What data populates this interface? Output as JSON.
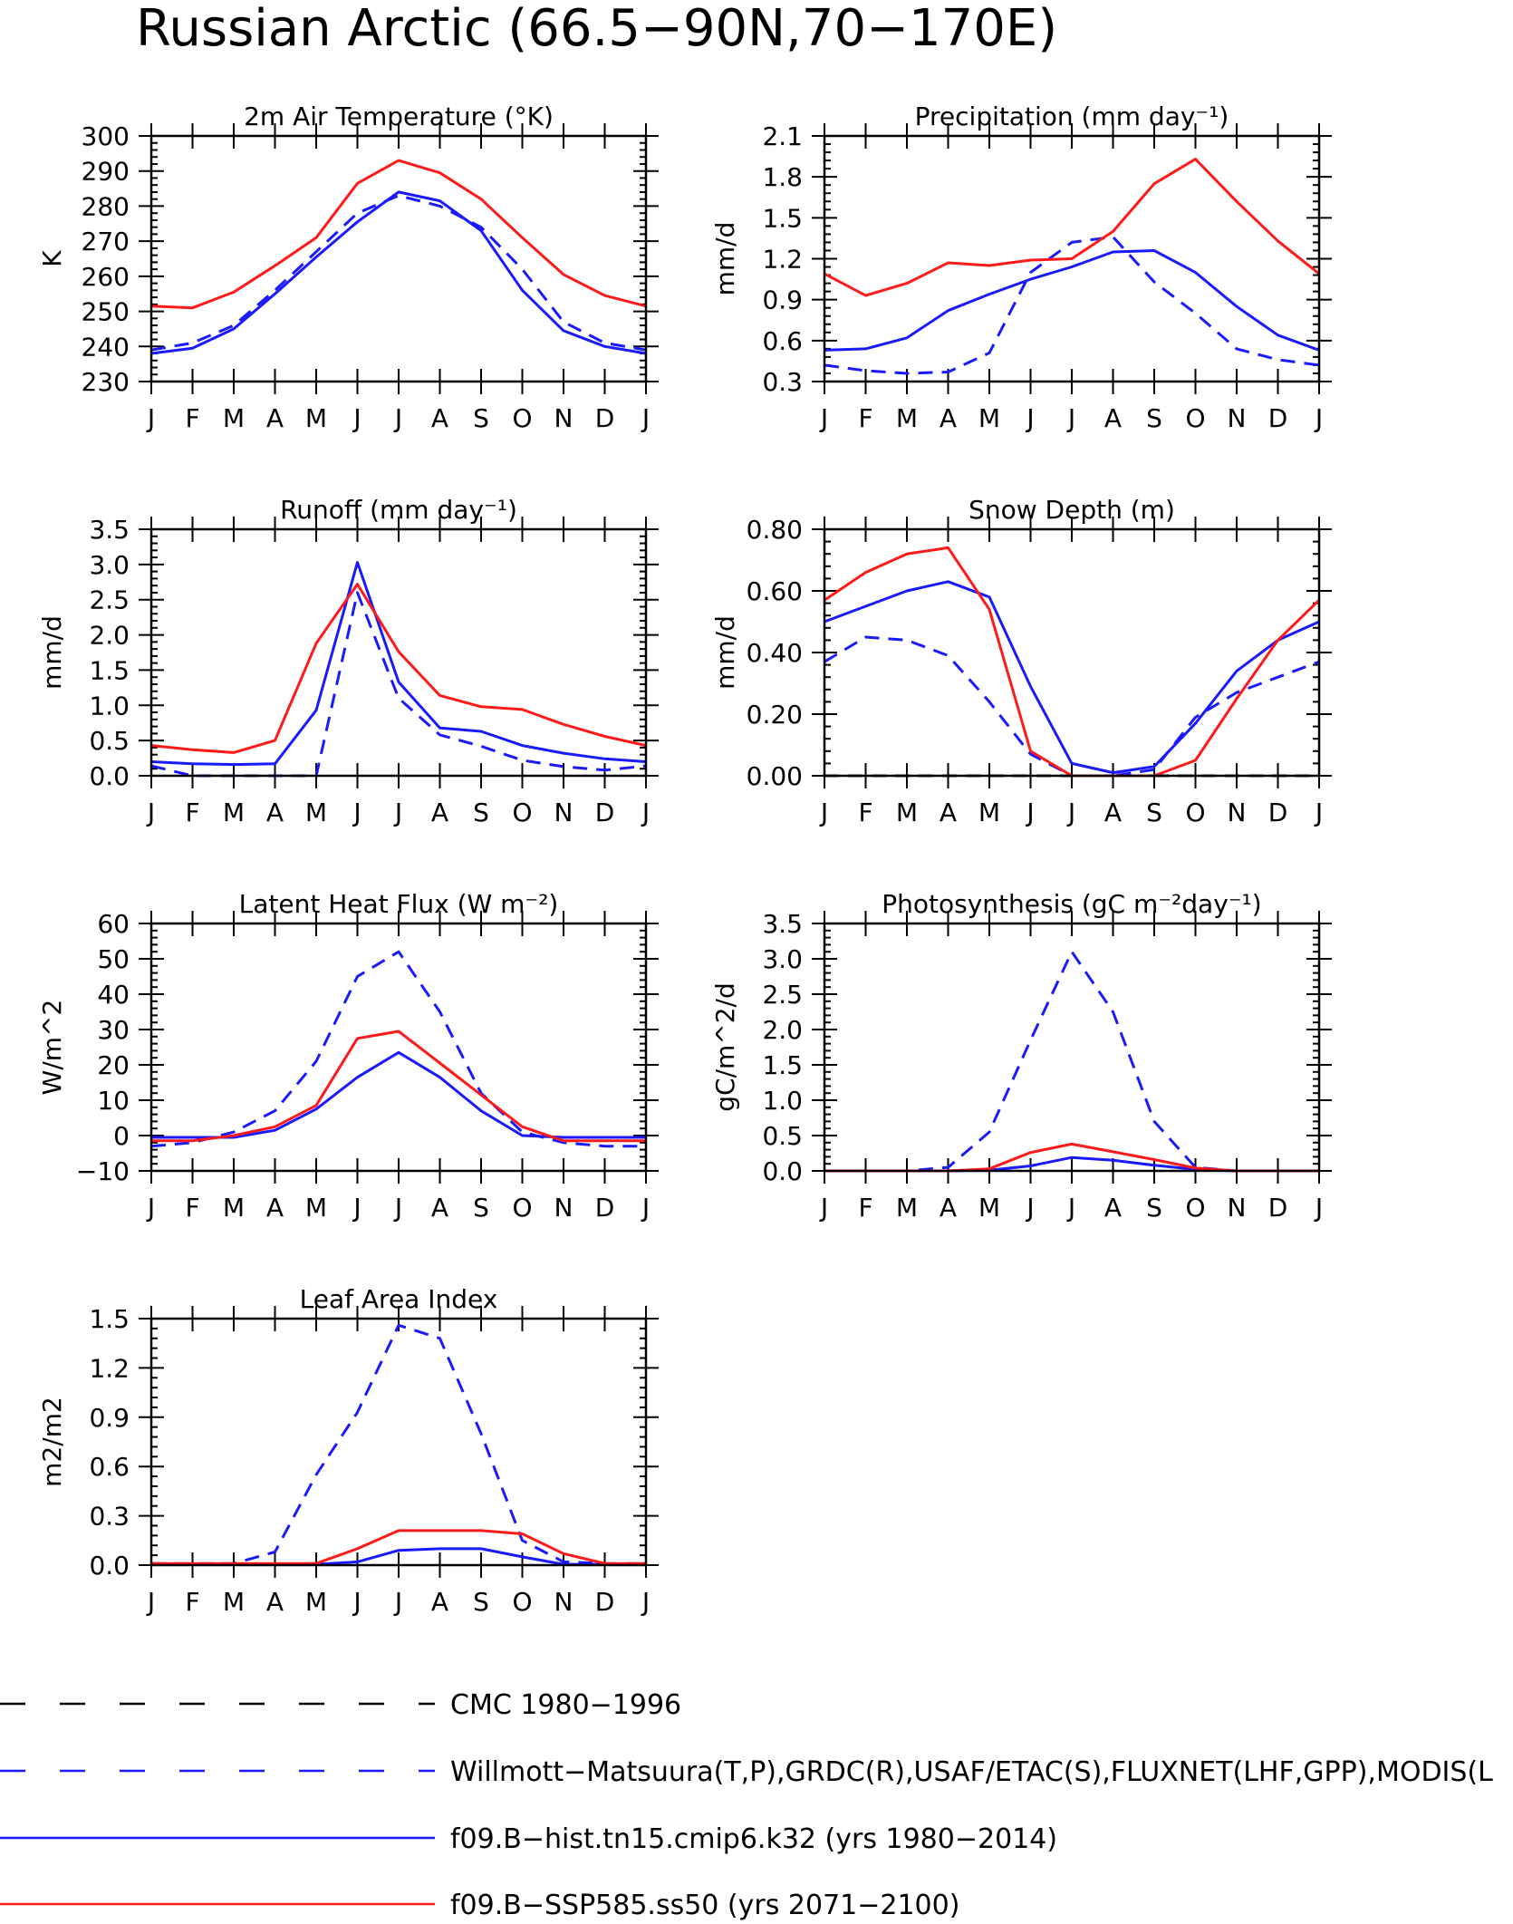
{
  "figure": {
    "title": "Russian Arctic (66.5−90N,70−170E)"
  },
  "style": {
    "obs_color": "#1a1aff",
    "model_color": "#1a1aff",
    "future_color": "#ff1a1a",
    "cmc_color": "#000000"
  },
  "months": [
    "J",
    "F",
    "M",
    "A",
    "M",
    "J",
    "J",
    "A",
    "S",
    "O",
    "N",
    "D",
    "J"
  ],
  "legend": [
    {
      "label": "CMC 1980−1996",
      "color": "#000000",
      "dash": true
    },
    {
      "label": "Willmott−Matsuura(T,P),GRDC(R),USAF/ETAC(S),FLUXNET(LHF,GPP),MODIS(L",
      "color": "#1a1aff",
      "dash": true
    },
    {
      "label": "f09.B−hist.tn15.cmip6.k32 (yrs 1980−2014)",
      "color": "#1a1aff",
      "dash": false
    },
    {
      "label": "f09.B−SSP585.ss50 (yrs 2071−2100)",
      "color": "#ff1a1a",
      "dash": false
    }
  ],
  "chart_data": [
    {
      "type": "line",
      "title": "2m Air Temperature (°K)",
      "ylabel": "K",
      "ylim": [
        230,
        300
      ],
      "yticks": [
        "230",
        "240",
        "250",
        "260",
        "270",
        "280",
        "290",
        "300"
      ],
      "series": [
        {
          "name": "Willmott−Matsuura(T,P),GRDC(R),USAF/ETAC(S),FLUXNET(LHF,GPP),MODIS(L",
          "dash": true,
          "color": "#1a1aff",
          "values": [
            239,
            241,
            246,
            256,
            267,
            278,
            283,
            280,
            274,
            262,
            247,
            241,
            239
          ]
        },
        {
          "name": "f09.B−hist.tn15.cmip6.k32 (yrs 1980−2014)",
          "dash": false,
          "color": "#1a1aff",
          "values": [
            238,
            239.5,
            245,
            255,
            265.5,
            275.5,
            284,
            281.5,
            273,
            256,
            244.5,
            240,
            238
          ]
        },
        {
          "name": "f09.B−SSP585.ss50 (yrs 2071−2100)",
          "dash": false,
          "color": "#ff1a1a",
          "values": [
            251.5,
            251,
            255.5,
            263,
            271,
            286.5,
            293,
            289.5,
            282,
            271,
            260.5,
            254.5,
            251.5
          ]
        }
      ]
    },
    {
      "type": "line",
      "title": "Precipitation (mm day⁻¹)",
      "ylabel": "mm/d",
      "ylim": [
        0.3,
        2.1
      ],
      "yticks": [
        "0.3",
        "0.6",
        "0.9",
        "1.2",
        "1.5",
        "1.8",
        "2.1"
      ],
      "series": [
        {
          "name": "Willmott−Matsuura(T,P),GRDC(R),USAF/ETAC(S),FLUXNET(LHF,GPP),MODIS(L",
          "dash": true,
          "color": "#1a1aff",
          "values": [
            0.42,
            0.38,
            0.36,
            0.37,
            0.51,
            1.1,
            1.32,
            1.36,
            1.03,
            0.8,
            0.54,
            0.46,
            0.42
          ]
        },
        {
          "name": "f09.B−hist.tn15.cmip6.k32 (yrs 1980−2014)",
          "dash": false,
          "color": "#1a1aff",
          "values": [
            0.53,
            0.54,
            0.62,
            0.82,
            0.94,
            1.05,
            1.14,
            1.25,
            1.26,
            1.1,
            0.85,
            0.64,
            0.53
          ]
        },
        {
          "name": "f09.B−SSP585.ss50 (yrs 2071−2100)",
          "dash": false,
          "color": "#ff1a1a",
          "values": [
            1.09,
            0.93,
            1.02,
            1.17,
            1.15,
            1.19,
            1.2,
            1.4,
            1.75,
            1.93,
            1.62,
            1.33,
            1.09
          ]
        }
      ]
    },
    {
      "type": "line",
      "title": "Runoff (mm day⁻¹)",
      "ylabel": "mm/d",
      "ylim": [
        0.0,
        3.5
      ],
      "yticks": [
        "0.0",
        "0.5",
        "1.0",
        "1.5",
        "2.0",
        "2.5",
        "3.0",
        "3.5"
      ],
      "series": [
        {
          "name": "Willmott−Matsuura(T,P),GRDC(R),USAF/ETAC(S),FLUXNET(LHF,GPP),MODIS(L",
          "dash": true,
          "color": "#1a1aff",
          "values": [
            0.14,
            0.0,
            0.0,
            0.0,
            0.0,
            2.6,
            1.1,
            0.58,
            0.42,
            0.22,
            0.13,
            0.08,
            0.14
          ]
        },
        {
          "name": "f09.B−hist.tn15.cmip6.k32 (yrs 1980−2014)",
          "dash": false,
          "color": "#1a1aff",
          "values": [
            0.2,
            0.17,
            0.16,
            0.17,
            0.93,
            3.03,
            1.33,
            0.68,
            0.63,
            0.43,
            0.32,
            0.24,
            0.2
          ]
        },
        {
          "name": "f09.B−SSP585.ss50 (yrs 2071−2100)",
          "dash": false,
          "color": "#ff1a1a",
          "values": [
            0.43,
            0.37,
            0.33,
            0.5,
            1.88,
            2.72,
            1.76,
            1.14,
            0.98,
            0.94,
            0.73,
            0.56,
            0.43
          ]
        }
      ]
    },
    {
      "type": "line",
      "title": "Snow Depth (m)",
      "ylabel": "mm/d",
      "ylim": [
        0.0,
        0.8
      ],
      "yticks": [
        "0.00",
        "0.20",
        "0.40",
        "0.60",
        "0.80"
      ],
      "series": [
        {
          "name": "CMC 1980−1996",
          "dash": true,
          "color": "#000000",
          "values": [
            0,
            0,
            0,
            0,
            0,
            0,
            0,
            0,
            0,
            0,
            0,
            0,
            0
          ]
        },
        {
          "name": "Willmott−Matsuura(T,P),GRDC(R),USAF/ETAC(S),FLUXNET(LHF,GPP),MODIS(L",
          "dash": true,
          "color": "#1a1aff",
          "values": [
            0.37,
            0.45,
            0.44,
            0.39,
            0.24,
            0.07,
            0.0,
            0.0,
            0.02,
            0.19,
            0.27,
            0.32,
            0.37
          ]
        },
        {
          "name": "f09.B−hist.tn15.cmip6.k32 (yrs 1980−2014)",
          "dash": false,
          "color": "#1a1aff",
          "values": [
            0.5,
            0.55,
            0.6,
            0.63,
            0.58,
            0.29,
            0.04,
            0.01,
            0.03,
            0.17,
            0.34,
            0.44,
            0.5
          ]
        },
        {
          "name": "f09.B−SSP585.ss50 (yrs 2071−2100)",
          "dash": false,
          "color": "#ff1a1a",
          "values": [
            0.57,
            0.66,
            0.72,
            0.74,
            0.54,
            0.08,
            0.0,
            0.0,
            0.0,
            0.05,
            0.25,
            0.44,
            0.57
          ]
        }
      ]
    },
    {
      "type": "line",
      "title": "Latent Heat Flux (W m⁻²)",
      "ylabel": "W/m^2",
      "ylim": [
        -10,
        60
      ],
      "yticks": [
        "−10",
        "0",
        "10",
        "20",
        "30",
        "40",
        "50",
        "60"
      ],
      "series": [
        {
          "name": "Willmott−Matsuura(T,P),GRDC(R),USAF/ETAC(S),FLUXNET(LHF,GPP),MODIS(L",
          "dash": true,
          "color": "#1a1aff",
          "values": [
            -3,
            -2,
            1,
            7,
            21,
            45,
            52,
            35,
            12,
            1,
            -2,
            -3,
            -3
          ]
        },
        {
          "name": "f09.B−hist.tn15.cmip6.k32 (yrs 1980−2014)",
          "dash": false,
          "color": "#1a1aff",
          "values": [
            -0.5,
            -0.5,
            -0.5,
            1.5,
            7.5,
            16.5,
            23.5,
            16.5,
            7,
            0,
            -0.5,
            -0.5,
            -0.5
          ]
        },
        {
          "name": "f09.B−SSP585.ss50 (yrs 2071−2100)",
          "dash": false,
          "color": "#ff1a1a",
          "values": [
            -1.5,
            -1.5,
            0,
            2.5,
            8.5,
            27.5,
            29.5,
            20.5,
            11.5,
            2.5,
            -1.5,
            -1.5,
            -1.5
          ]
        }
      ]
    },
    {
      "type": "line",
      "title": "Photosynthesis (gC m⁻²day⁻¹)",
      "ylabel": "gC/m^2/d",
      "ylim": [
        0.0,
        3.5
      ],
      "yticks": [
        "0.0",
        "0.5",
        "1.0",
        "1.5",
        "2.0",
        "2.5",
        "3.0",
        "3.5"
      ],
      "series": [
        {
          "name": "Willmott−Matsuura(T,P),GRDC(R),USAF/ETAC(S),FLUXNET(LHF,GPP),MODIS(L",
          "dash": true,
          "color": "#1a1aff",
          "values": [
            0,
            0,
            0,
            0.05,
            0.55,
            1.85,
            3.1,
            2.25,
            0.7,
            0.05,
            0,
            0,
            0
          ]
        },
        {
          "name": "f09.B−hist.tn15.cmip6.k32 (yrs 1980−2014)",
          "dash": false,
          "color": "#1a1aff",
          "values": [
            0,
            0,
            0,
            0,
            0.01,
            0.07,
            0.19,
            0.15,
            0.08,
            0.02,
            0,
            0,
            0
          ]
        },
        {
          "name": "f09.B−SSP585.ss50 (yrs 2071−2100)",
          "dash": false,
          "color": "#ff1a1a",
          "values": [
            0,
            0,
            0,
            0,
            0.03,
            0.26,
            0.38,
            0.27,
            0.16,
            0.04,
            0,
            0,
            0
          ]
        }
      ]
    },
    {
      "type": "line",
      "title": "Leaf Area Index",
      "ylabel": "m2/m2",
      "ylim": [
        0.0,
        1.5
      ],
      "yticks": [
        "0.0",
        "0.3",
        "0.6",
        "0.9",
        "1.2",
        "1.5"
      ],
      "series": [
        {
          "name": "Willmott−Matsuura(T,P),GRDC(R),USAF/ETAC(S),FLUXNET(LHF,GPP),MODIS(L",
          "dash": true,
          "color": "#1a1aff",
          "values": [
            0.01,
            0.01,
            0.01,
            0.08,
            0.55,
            0.93,
            1.46,
            1.38,
            0.8,
            0.15,
            0.02,
            0.01,
            0.01
          ]
        },
        {
          "name": "f09.B−hist.tn15.cmip6.k32 (yrs 1980−2014)",
          "dash": false,
          "color": "#1a1aff",
          "values": [
            0.005,
            0.005,
            0.005,
            0.005,
            0.005,
            0.02,
            0.09,
            0.1,
            0.1,
            0.05,
            0.005,
            0.005,
            0.005
          ]
        },
        {
          "name": "f09.B−SSP585.ss50 (yrs 2071−2100)",
          "dash": false,
          "color": "#ff1a1a",
          "values": [
            0.01,
            0.01,
            0.01,
            0.01,
            0.01,
            0.1,
            0.21,
            0.21,
            0.21,
            0.19,
            0.07,
            0.01,
            0.01
          ]
        }
      ]
    }
  ]
}
